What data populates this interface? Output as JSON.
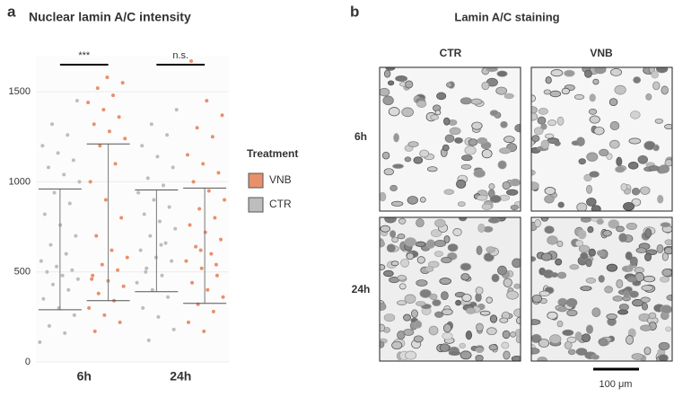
{
  "chart_data": {
    "type": "strip",
    "panel": "a",
    "title": "Nuclear lamin A/C intensity",
    "categories": [
      "6h",
      "24h"
    ],
    "series": [
      {
        "name": "CTR",
        "color": "#bdbdbd",
        "values": [
          [
            110,
            160,
            200,
            260,
            300,
            350,
            400,
            430,
            460,
            480,
            500,
            510,
            530,
            560,
            600,
            650,
            700,
            760,
            820,
            880,
            940,
            1000,
            1040,
            1080,
            1120,
            1160,
            1200,
            1260,
            1320,
            1450
          ],
          [
            120,
            180,
            250,
            300,
            360,
            400,
            440,
            480,
            520,
            560,
            580,
            620,
            660,
            700,
            740,
            780,
            820,
            860,
            900,
            940,
            980,
            1020,
            1080,
            1140,
            1200,
            1260,
            1320,
            1400,
            650,
            500
          ]
        ],
        "ranges": [
          [
            290,
            960
          ],
          [
            390,
            955
          ]
        ]
      },
      {
        "name": "VNB",
        "color": "#e8906c",
        "values": [
          [
            170,
            220,
            260,
            300,
            340,
            380,
            420,
            450,
            480,
            510,
            540,
            580,
            620,
            700,
            800,
            900,
            1000,
            1100,
            1200,
            1240,
            1280,
            1320,
            1360,
            1400,
            1440,
            1480,
            1520,
            1550,
            1580,
            460
          ],
          [
            170,
            220,
            280,
            320,
            360,
            400,
            440,
            480,
            520,
            560,
            600,
            640,
            680,
            720,
            760,
            800,
            850,
            900,
            950,
            1000,
            1050,
            1100,
            1150,
            1250,
            1300,
            1370,
            1450,
            1670,
            540,
            620
          ]
        ],
        "ranges": [
          [
            340,
            1210
          ],
          [
            325,
            965
          ]
        ]
      }
    ],
    "ylim": [
      0,
      1700
    ],
    "yticks": [
      0,
      500,
      1000,
      1500
    ],
    "grid": true,
    "significance": [
      "***",
      "n.s."
    ],
    "legend": {
      "title": "Treatment",
      "order": [
        1,
        0
      ],
      "position": "right"
    }
  },
  "panel_b": {
    "label": "b",
    "title": "Lamin A/C staining",
    "columns": [
      "CTR",
      "VNB"
    ],
    "rows": [
      "6h",
      "24h"
    ],
    "scale_bar": "100 μm"
  },
  "panel_a_label": "a"
}
